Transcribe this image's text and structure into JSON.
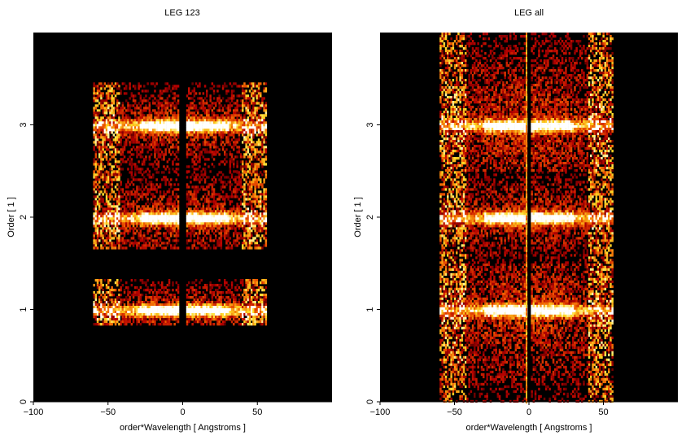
{
  "chart_data": [
    {
      "type": "heatmap",
      "title": "LEG 123",
      "xlabel": "order*Wavelength [ Angstroms ]",
      "ylabel": "Order [ 1 ]",
      "xlim": [
        -100,
        100
      ],
      "ylim": [
        0,
        4
      ],
      "xticks": [
        "−100",
        "−50",
        "0",
        "50"
      ],
      "xtick_values": [
        -100,
        -50,
        0,
        50
      ],
      "yticks": [
        "0",
        "1",
        "2",
        "3"
      ],
      "ytick_values": [
        0,
        1,
        2,
        3
      ],
      "colormap": "black-red-orange-yellow-white",
      "background": "#000000",
      "bands": [
        {
          "order": 1,
          "y_range": [
            0.83,
            1.33
          ],
          "x_range": [
            -60,
            56
          ],
          "center_gap": [
            -1.5,
            1.5
          ]
        },
        {
          "order": 2,
          "y_range": [
            1.66,
            2.5
          ],
          "x_range": [
            -60,
            56
          ],
          "center_gap": [
            -1.5,
            1.5
          ]
        },
        {
          "order": 3,
          "y_range": [
            2.5,
            3.46
          ],
          "x_range": [
            -60,
            56
          ],
          "center_gap": [
            -1.5,
            1.5
          ]
        }
      ],
      "split_bands": false
    },
    {
      "type": "heatmap",
      "title": "LEG all",
      "xlabel": "order*Wavelength [ Angstroms ]",
      "ylabel": "Order [ 1 ]",
      "xlim": [
        -100,
        100
      ],
      "ylim": [
        0,
        4
      ],
      "xticks": [
        "−100",
        "−50",
        "0",
        "50"
      ],
      "xtick_values": [
        -100,
        -50,
        0,
        50
      ],
      "yticks": [
        "0",
        "1",
        "2",
        "3"
      ],
      "ytick_values": [
        0,
        1,
        2,
        3
      ],
      "colormap": "black-red-orange-yellow-white",
      "background": "#000000",
      "bands": [
        {
          "order": 1,
          "y_range": [
            0.0,
            1.5
          ],
          "x_range": [
            -60,
            56
          ],
          "center_gap": [
            -1,
            1
          ]
        },
        {
          "order": 2,
          "y_range": [
            1.5,
            2.5
          ],
          "x_range": [
            -60,
            56
          ],
          "center_gap": [
            -1,
            1
          ]
        },
        {
          "order": 3,
          "y_range": [
            2.5,
            4.0
          ],
          "x_range": [
            -60,
            56
          ],
          "center_gap": [
            -1,
            1
          ]
        }
      ],
      "split_bands": true
    }
  ]
}
